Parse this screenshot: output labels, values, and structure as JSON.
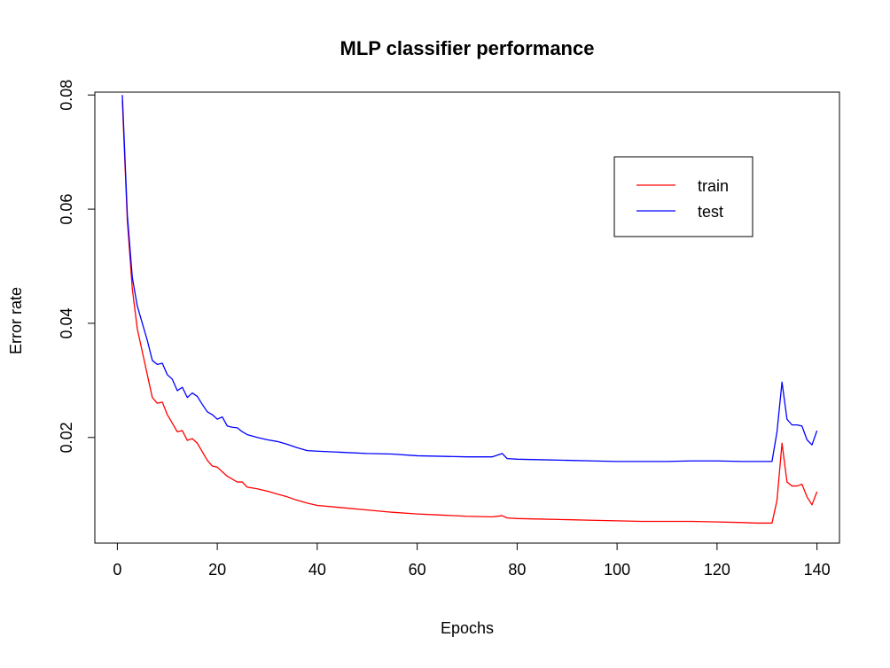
{
  "chart_data": {
    "type": "line",
    "title": "MLP classifier performance",
    "xlabel": "Epochs",
    "ylabel": "Error rate",
    "xlim": [
      -4.5,
      144.5
    ],
    "ylim": [
      0.0015,
      0.0805
    ],
    "x_ticks": [
      0,
      20,
      40,
      60,
      80,
      100,
      120,
      140
    ],
    "x_tick_labels": [
      "0",
      "20",
      "40",
      "60",
      "80",
      "100",
      "120",
      "140"
    ],
    "y_ticks": [
      0.02,
      0.04,
      0.06,
      0.08
    ],
    "y_tick_labels": [
      "0.02",
      "0.04",
      "0.06",
      "0.08"
    ],
    "grid": false,
    "legend": {
      "position": "top-right",
      "entries": [
        "train",
        "test"
      ]
    },
    "series": [
      {
        "name": "train",
        "color": "#ff0000",
        "points": [
          [
            1,
            0.079
          ],
          [
            2,
            0.058
          ],
          [
            3,
            0.046
          ],
          [
            4,
            0.039
          ],
          [
            5,
            0.035
          ],
          [
            6,
            0.031
          ],
          [
            7,
            0.027
          ],
          [
            8,
            0.026
          ],
          [
            9,
            0.0262
          ],
          [
            10,
            0.024
          ],
          [
            11,
            0.0225
          ],
          [
            12,
            0.021
          ],
          [
            13,
            0.0212
          ],
          [
            14,
            0.0195
          ],
          [
            15,
            0.0198
          ],
          [
            16,
            0.019
          ],
          [
            17,
            0.0175
          ],
          [
            18,
            0.016
          ],
          [
            19,
            0.015
          ],
          [
            20,
            0.0148
          ],
          [
            21,
            0.014
          ],
          [
            22,
            0.0132
          ],
          [
            23,
            0.0127
          ],
          [
            24,
            0.0122
          ],
          [
            25,
            0.0122
          ],
          [
            26,
            0.0113
          ],
          [
            28,
            0.011
          ],
          [
            30,
            0.0106
          ],
          [
            32,
            0.0101
          ],
          [
            34,
            0.0096
          ],
          [
            36,
            0.009
          ],
          [
            38,
            0.0085
          ],
          [
            40,
            0.0081
          ],
          [
            45,
            0.0077
          ],
          [
            50,
            0.0073
          ],
          [
            55,
            0.0069
          ],
          [
            60,
            0.0066
          ],
          [
            65,
            0.0064
          ],
          [
            70,
            0.0062
          ],
          [
            75,
            0.0061
          ],
          [
            77,
            0.0063
          ],
          [
            78,
            0.0059
          ],
          [
            80,
            0.0058
          ],
          [
            85,
            0.0057
          ],
          [
            90,
            0.0056
          ],
          [
            95,
            0.0055
          ],
          [
            100,
            0.0054
          ],
          [
            105,
            0.0053
          ],
          [
            110,
            0.0053
          ],
          [
            115,
            0.0053
          ],
          [
            120,
            0.0052
          ],
          [
            125,
            0.0051
          ],
          [
            128,
            0.005
          ],
          [
            130,
            0.005
          ],
          [
            131,
            0.005
          ],
          [
            132,
            0.009
          ],
          [
            133,
            0.019
          ],
          [
            134,
            0.0122
          ],
          [
            135,
            0.0115
          ],
          [
            136,
            0.0115
          ],
          [
            137,
            0.0118
          ],
          [
            138,
            0.0096
          ],
          [
            139,
            0.0082
          ],
          [
            140,
            0.0105
          ]
        ]
      },
      {
        "name": "test",
        "color": "#0000ff",
        "points": [
          [
            1,
            0.08
          ],
          [
            2,
            0.059
          ],
          [
            3,
            0.048
          ],
          [
            4,
            0.043
          ],
          [
            5,
            0.04
          ],
          [
            6,
            0.037
          ],
          [
            7,
            0.0335
          ],
          [
            8,
            0.0328
          ],
          [
            9,
            0.033
          ],
          [
            10,
            0.031
          ],
          [
            11,
            0.0302
          ],
          [
            12,
            0.0282
          ],
          [
            13,
            0.0288
          ],
          [
            14,
            0.027
          ],
          [
            15,
            0.0278
          ],
          [
            16,
            0.0272
          ],
          [
            17,
            0.0258
          ],
          [
            18,
            0.0245
          ],
          [
            19,
            0.024
          ],
          [
            20,
            0.0232
          ],
          [
            21,
            0.0236
          ],
          [
            22,
            0.022
          ],
          [
            23,
            0.0218
          ],
          [
            24,
            0.0217
          ],
          [
            25,
            0.021
          ],
          [
            26,
            0.0205
          ],
          [
            28,
            0.02
          ],
          [
            30,
            0.0196
          ],
          [
            32,
            0.0193
          ],
          [
            34,
            0.0188
          ],
          [
            36,
            0.0182
          ],
          [
            38,
            0.0177
          ],
          [
            40,
            0.0176
          ],
          [
            45,
            0.0174
          ],
          [
            50,
            0.0172
          ],
          [
            55,
            0.0171
          ],
          [
            60,
            0.0168
          ],
          [
            65,
            0.0167
          ],
          [
            70,
            0.0166
          ],
          [
            75,
            0.0166
          ],
          [
            77,
            0.0172
          ],
          [
            78,
            0.0163
          ],
          [
            80,
            0.0162
          ],
          [
            85,
            0.0161
          ],
          [
            90,
            0.016
          ],
          [
            95,
            0.0159
          ],
          [
            100,
            0.0158
          ],
          [
            105,
            0.0158
          ],
          [
            110,
            0.0158
          ],
          [
            115,
            0.0159
          ],
          [
            120,
            0.0159
          ],
          [
            125,
            0.0158
          ],
          [
            128,
            0.0158
          ],
          [
            130,
            0.0158
          ],
          [
            131,
            0.0158
          ],
          [
            132,
            0.021
          ],
          [
            133,
            0.0297
          ],
          [
            134,
            0.0232
          ],
          [
            135,
            0.0222
          ],
          [
            136,
            0.0222
          ],
          [
            137,
            0.022
          ],
          [
            138,
            0.0196
          ],
          [
            139,
            0.0187
          ],
          [
            140,
            0.0212
          ]
        ]
      }
    ]
  }
}
